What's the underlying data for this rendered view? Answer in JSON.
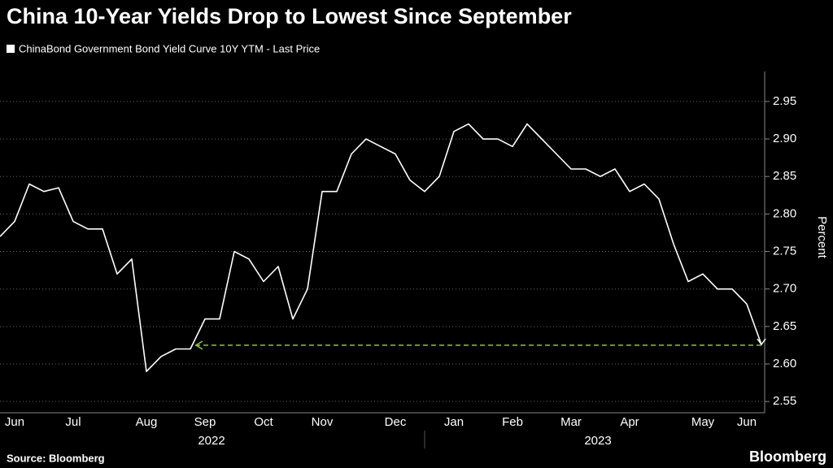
{
  "chart_data": {
    "type": "line",
    "title": "China 10-Year Yields Drop to Lowest Since September",
    "y_axis_label": "Percent",
    "source": "Source: Bloomberg",
    "brand": "Bloomberg",
    "year_labels": [
      "2022",
      "2023"
    ],
    "categories": [
      null,
      "Jun",
      null,
      null,
      null,
      "Jul",
      null,
      null,
      null,
      null,
      "Aug",
      null,
      null,
      null,
      "Sep",
      null,
      null,
      null,
      "Oct",
      null,
      null,
      null,
      "Nov",
      null,
      null,
      null,
      null,
      "Dec",
      null,
      null,
      null,
      "Jan",
      null,
      null,
      null,
      "Feb",
      null,
      null,
      null,
      "Mar",
      null,
      null,
      null,
      "Apr",
      null,
      null,
      null,
      null,
      "May",
      null,
      null,
      "Jun",
      null
    ],
    "series": [
      {
        "name": "ChinaBond Government Bond Yield Curve 10Y YTM - Last Price",
        "color": "#ffffff",
        "values": [
          2.77,
          2.79,
          2.84,
          2.83,
          2.835,
          2.79,
          2.78,
          2.78,
          2.72,
          2.74,
          2.59,
          2.61,
          2.62,
          2.62,
          2.66,
          2.66,
          2.75,
          2.74,
          2.71,
          2.73,
          2.66,
          2.7,
          2.83,
          2.83,
          2.88,
          2.9,
          2.89,
          2.88,
          2.845,
          2.83,
          2.85,
          2.91,
          2.92,
          2.9,
          2.9,
          2.89,
          2.92,
          2.9,
          2.88,
          2.86,
          2.86,
          2.85,
          2.86,
          2.83,
          2.84,
          2.82,
          2.76,
          2.71,
          2.72,
          2.7,
          2.7,
          2.68,
          2.626
        ]
      }
    ],
    "reference_line": {
      "value": 2.625,
      "color": "#8cc63f"
    },
    "ylim": [
      2.535,
      2.99
    ],
    "yticks": [
      2.55,
      {
        "value": 2.6,
        "label": "2.60"
      },
      2.65,
      {
        "value": 2.7,
        "label": "2.70"
      },
      2.75,
      {
        "value": 2.8,
        "label": "2.80"
      },
      2.85,
      {
        "value": 2.9,
        "label": "2.90"
      },
      2.95
    ],
    "grid": true
  }
}
